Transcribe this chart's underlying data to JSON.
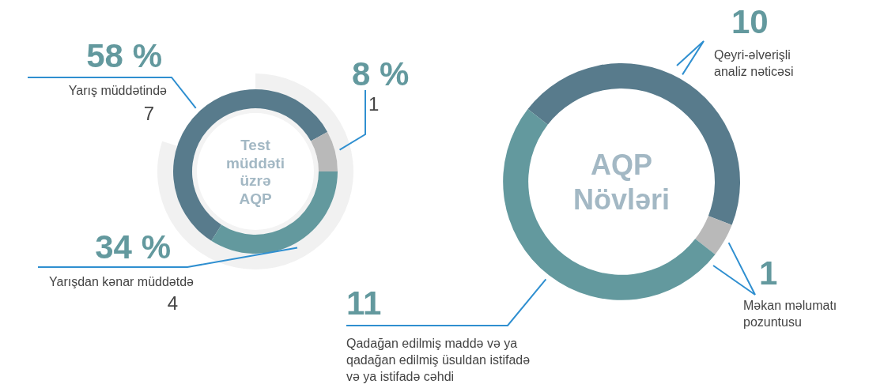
{
  "chart_data": [
    {
      "type": "donut",
      "title": "Test müddəti üzrə AQP",
      "categories": [
        "Yarış müddətində",
        null,
        "Yarışdan kənar müddətdə"
      ],
      "values": [
        58,
        8,
        34
      ],
      "value_labels": [
        "58 %",
        "8 %",
        "34 %"
      ],
      "annotations": [
        "7",
        "1",
        "4"
      ],
      "colors": [
        "#587b8c",
        "#b9b9b9",
        "#63999e"
      ]
    },
    {
      "type": "donut",
      "title": "AQP Növləri",
      "categories": [
        "Qeyri-əlverişli analiz nəticəsi",
        "Məkan məlumatı pozuntusu",
        "Qadağan edilmiş maddə və ya qadağan edilmiş üsuldan istifadə və ya istifadə cəhdi"
      ],
      "values": [
        10,
        1,
        11
      ],
      "data_labels": true,
      "colors": [
        "#587b8c",
        "#b9b9b9",
        "#63999e"
      ]
    }
  ]
}
